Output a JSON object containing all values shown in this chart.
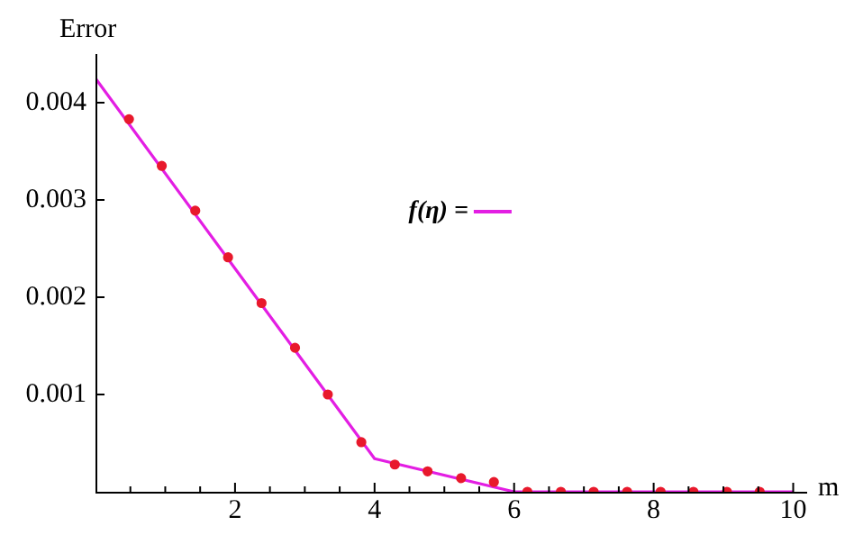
{
  "chart_data": {
    "type": "line",
    "xlabel": "m",
    "ylabel": "Error",
    "xlim": [
      0,
      10.2
    ],
    "ylim": [
      0,
      0.0045
    ],
    "xticks": [
      {
        "value": 0.5,
        "label": null
      },
      {
        "value": 1,
        "label": null
      },
      {
        "value": 1.5,
        "label": null
      },
      2,
      {
        "value": 2.5,
        "label": null
      },
      {
        "value": 3,
        "label": null
      },
      {
        "value": 3.5,
        "label": null
      },
      4,
      {
        "value": 4.5,
        "label": null
      },
      {
        "value": 5,
        "label": null
      },
      {
        "value": 5.5,
        "label": null
      },
      6,
      {
        "value": 6.5,
        "label": null
      },
      {
        "value": 7,
        "label": null
      },
      {
        "value": 7.5,
        "label": null
      },
      8,
      {
        "value": 8.5,
        "label": null
      },
      {
        "value": 9,
        "label": null
      },
      {
        "value": 9.5,
        "label": null
      },
      10
    ],
    "yticks": [
      0.001,
      0.002,
      0.003,
      0.004
    ],
    "legend": "right",
    "series": [
      {
        "name": "f(η) =",
        "color": "#e31ee3",
        "marker": "none",
        "x": [
          0,
          4,
          6,
          10
        ],
        "values": [
          0.00425,
          0.00034,
          0,
          0
        ]
      },
      {
        "type": "scatter",
        "color": "#e8192c",
        "marker": "circle",
        "x": [
          0.48,
          0.95,
          1.43,
          1.9,
          2.38,
          2.86,
          3.33,
          3.81,
          4.29,
          4.76,
          5.24,
          5.71,
          6.19,
          6.67,
          7.14,
          7.62,
          8.1,
          8.57,
          9.05,
          9.52
        ],
        "values": [
          0.00383,
          0.00335,
          0.00289,
          0.00241,
          0.00194,
          0.00148,
          0.001,
          0.00051,
          0.00028,
          0.00021,
          0.00014,
          0.0001,
          0,
          0,
          0,
          0,
          0,
          0,
          0,
          0
        ]
      }
    ]
  }
}
